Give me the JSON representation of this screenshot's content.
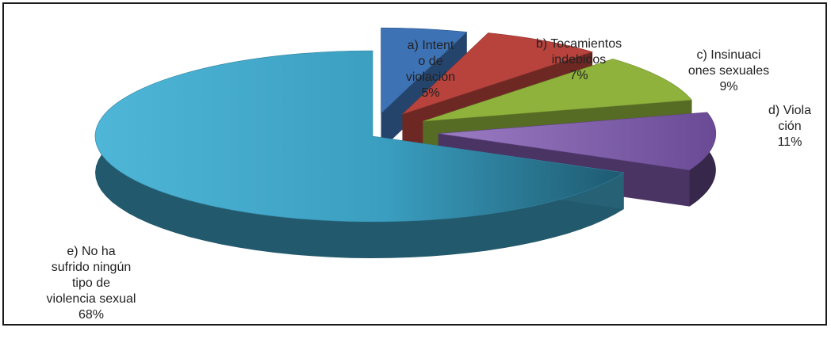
{
  "chart_data": {
    "type": "pie",
    "title": "",
    "slices": [
      {
        "label": "a)    Intent\no de\nviolación",
        "value": 5,
        "value_label": "5%",
        "color": "#3d72b4"
      },
      {
        "label": "b)    Tocamientos\nindebidos",
        "value": 7,
        "value_label": "7%",
        "color": "#b8423c"
      },
      {
        "label": "c)    Insinuaci\nones sexuales",
        "value": 9,
        "value_label": "9%",
        "color": "#8fb23c"
      },
      {
        "label": "d)    Viola\nción",
        "value": 11,
        "value_label": "11%",
        "color": "#7b57a6"
      },
      {
        "label": "e)    No ha\nsufrido ningún\ntipo de\nviolencia sexual",
        "value": 68,
        "value_label": "68%",
        "color": "#3fa2c4"
      }
    ]
  }
}
